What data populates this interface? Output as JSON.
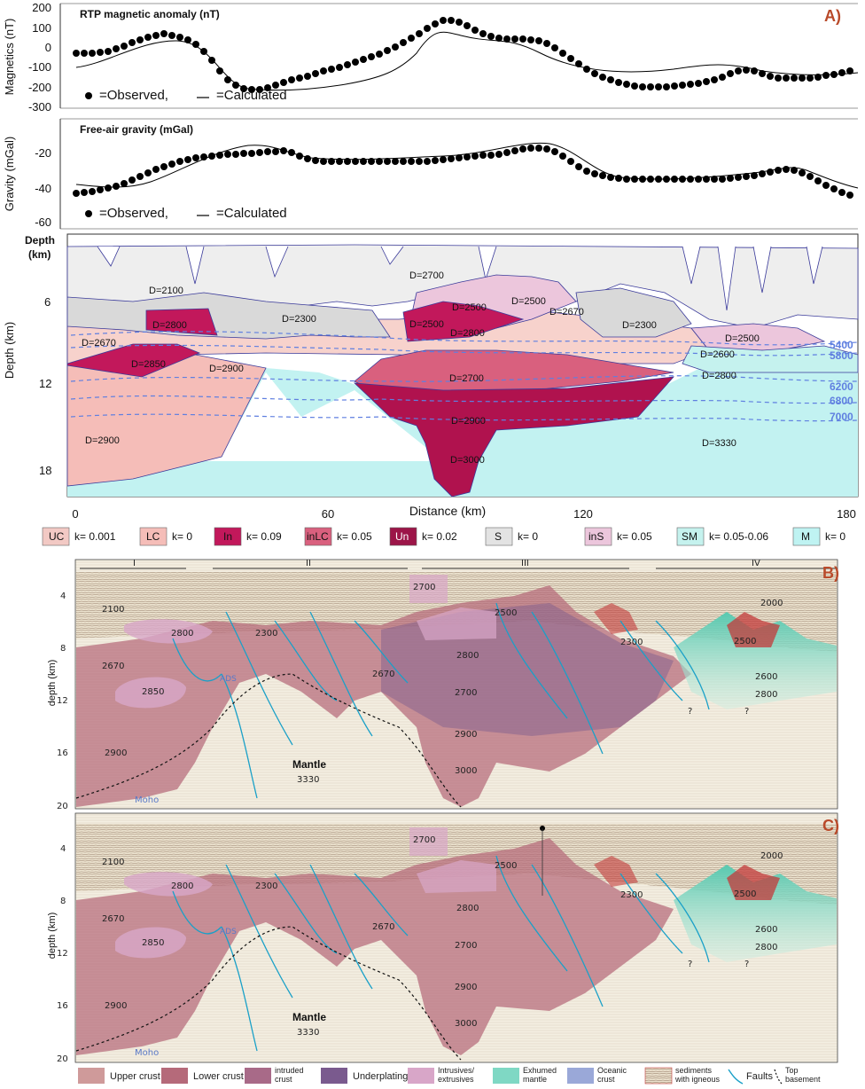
{
  "panel_a": {
    "letter": "A)",
    "magnetics": {
      "title": "RTP magnetic anomaly (nT)",
      "ylabel": "Magnetics (nT)",
      "ticks": [
        "200",
        "100",
        "0",
        "-100",
        "-200",
        "-300"
      ],
      "legend_observed": "=Observed,",
      "legend_calculated": "=Calculated"
    },
    "gravity": {
      "title": "Free-air gravity (mGal)",
      "ylabel": "Gravity (mGal)",
      "ticks": [
        "-20",
        "-40",
        "-60"
      ],
      "legend_observed": "=Observed,",
      "legend_calculated": "=Calculated"
    },
    "model": {
      "depth_header": "Depth",
      "depth_unit": "(km)",
      "ylabel": "Depth (km)",
      "yticks": [
        "6",
        "12",
        "18"
      ],
      "xticks": [
        "0",
        "60",
        "120",
        "180"
      ],
      "xlabel": "Distance (km)",
      "densities": [
        "D=2100",
        "D=2700",
        "D=2800",
        "D=2300",
        "D=2500",
        "D=2500",
        "D=2500",
        "D=2670",
        "D=2300",
        "D=2800",
        "D=2670",
        "D=2850",
        "D=2900",
        "D=2700",
        "D=2900",
        "D=2900",
        "D=3000",
        "D=2600",
        "D=2800",
        "D=2500",
        "D=3330"
      ],
      "velocities": [
        "5400",
        "5800",
        "6200",
        "6800",
        "7000"
      ]
    },
    "legend": [
      {
        "code": "UC",
        "k": "k= 0.001",
        "color": "#f2c9c4"
      },
      {
        "code": "LC",
        "k": "k= 0",
        "color": "#f5bdb8"
      },
      {
        "code": "In",
        "k": "k= 0.09",
        "color": "#c2185b"
      },
      {
        "code": "inLC",
        "k": "k= 0.05",
        "color": "#d9607e"
      },
      {
        "code": "Un",
        "k": "k= 0.02",
        "color": "#9c1548"
      },
      {
        "code": "S",
        "k": "k= 0",
        "color": "#e3e3e3"
      },
      {
        "code": "inS",
        "k": "k= 0.05",
        "color": "#ecc6dc"
      },
      {
        "code": "SM",
        "k": "k= 0.05-0.06",
        "color": "#c5f2ee"
      },
      {
        "code": "M",
        "k": "k= 0",
        "color": "#bff3f2"
      }
    ]
  },
  "panel_b": {
    "letter": "B)",
    "ylabel": "depth (km)",
    "yticks": [
      "4",
      "8",
      "12",
      "16",
      "20"
    ],
    "segments": [
      "I",
      "II",
      "III",
      "IV"
    ],
    "labels": [
      "2100",
      "2700",
      "2000",
      "2800",
      "2300",
      "2500",
      "2300",
      "2500",
      "2670",
      "2850",
      "2670",
      "2800",
      "2700",
      "2600",
      "2800",
      "2900",
      "2900",
      "3000",
      "?",
      "?",
      "Moho",
      "ADS"
    ],
    "mantle": "Mantle",
    "mantle_density": "3330"
  },
  "panel_c": {
    "letter": "C)",
    "ylabel": "depth (km)",
    "yticks": [
      "4",
      "8",
      "12",
      "16",
      "20"
    ],
    "labels": [
      "2100",
      "2700",
      "2000",
      "2800",
      "2300",
      "2500",
      "2300",
      "2500",
      "2670",
      "2850",
      "2670",
      "2800",
      "2700",
      "2600",
      "2800",
      "2900",
      "2900",
      "3000",
      "?",
      "?",
      "Moho",
      "ADS"
    ],
    "mantle": "Mantle",
    "mantle_density": "3330"
  },
  "bottom_legend": [
    {
      "label": "Upper crust",
      "color": "#cf9a9a"
    },
    {
      "label": "Lower crust",
      "color": "#b56a7a"
    },
    {
      "label": "intruded crust",
      "color": "#a86a88"
    },
    {
      "label": "Underplating",
      "color": "#7a5a8e"
    },
    {
      "label": "Intrusives/ extrusives",
      "color": "#d8a6c8"
    },
    {
      "label": "Exhumed mantle",
      "color": "#7fd8c4"
    },
    {
      "label": "Oceanic crust",
      "color": "#9aa8d8"
    },
    {
      "label": "sediments with igneous",
      "color": "#e8b0a0"
    },
    {
      "label": "Faults",
      "color": "#1aa0c8"
    },
    {
      "label": "Top basement",
      "color": "#000000"
    }
  ]
}
